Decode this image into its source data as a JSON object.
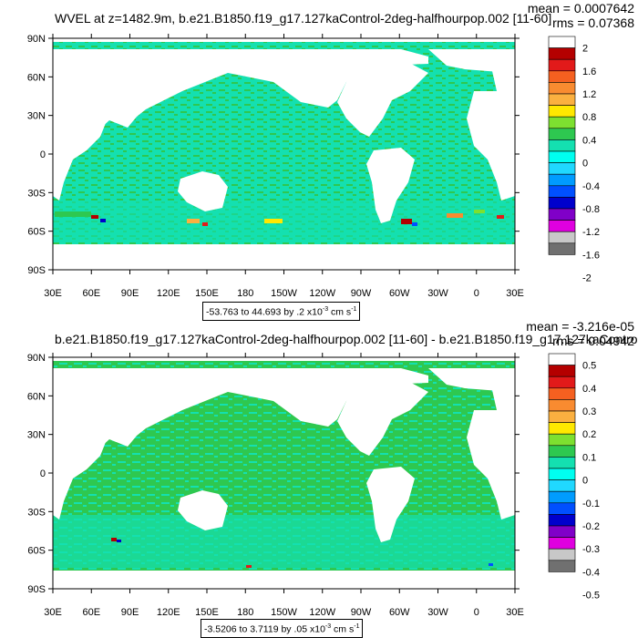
{
  "panels": [
    {
      "title": "WVEL at z=1482.9m, b.e21.B1850.f19_g17.127kaControl-2deg-halfhourpop.002 [11-60]",
      "mean": "mean = 0.0007642",
      "rms": "rms = 0.07368",
      "range_value": "-53.763 to 44.693 by .2 x10",
      "range_exp": "-3",
      "range_units": " cm s",
      "range_units_exp": "-1",
      "colorbar_labels": [
        "2",
        "1.6",
        "1.2",
        "0.8",
        "0.4",
        "0",
        "-0.4",
        "-0.8",
        "-1.2",
        "-1.6",
        "-2"
      ]
    },
    {
      "title": "b.e21.B1850.f19_g17.127kaControl-2deg-halfhourpop.002 [11-60] - b.e21.B1850.f19_g17.127kaControl-",
      "mean": "mean = -3.216e-05",
      "rms": "rms = 0.04942",
      "range_value": "-3.5206 to 3.7119 by .05 x10",
      "range_exp": "-3",
      "range_units": " cm s",
      "range_units_exp": "-1",
      "colorbar_labels": [
        "0.5",
        "0.4",
        "0.3",
        "0.2",
        "0.1",
        "0",
        "-0.1",
        "-0.2",
        "-0.3",
        "-0.4",
        "-0.5"
      ]
    }
  ],
  "axes": {
    "lat_labels": [
      "90N",
      "60N",
      "30N",
      "0",
      "30S",
      "60S",
      "90S"
    ],
    "lon_labels": [
      "30E",
      "60E",
      "90E",
      "120E",
      "150E",
      "180",
      "150W",
      "120W",
      "90W",
      "60W",
      "30W",
      "0",
      "30E"
    ]
  },
  "colorbar_colors": [
    "#ffffff",
    "#b40000",
    "#e21a1a",
    "#f56020",
    "#f98b30",
    "#fbb040",
    "#ffe800",
    "#7de030",
    "#2ec850",
    "#14e0b0",
    "#00fff0",
    "#20d8ff",
    "#009cff",
    "#0050ff",
    "#0000cc",
    "#8000c8",
    "#e000e0",
    "#c8c8c8",
    "#707070"
  ],
  "colors": {
    "ocean_main": "#14e0b0",
    "ocean_alt": "#2ec850",
    "land": "#ffffff"
  }
}
